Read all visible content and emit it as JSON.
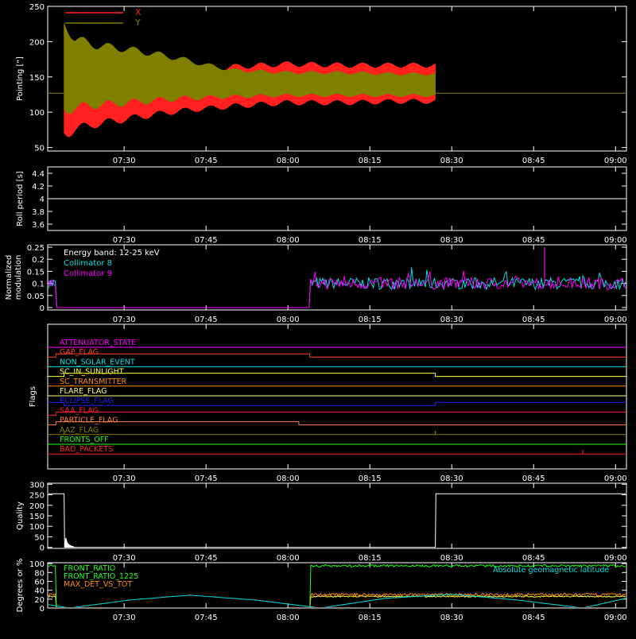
{
  "time_axis": {
    "ticks": [
      "07:30",
      "07:45",
      "08:00",
      "08:15",
      "08:30",
      "08:45",
      "09:00"
    ],
    "tick_minutes": [
      450,
      465,
      480,
      495,
      510,
      525,
      540
    ],
    "range_minutes": [
      436,
      542
    ]
  },
  "colors": {
    "background": "#000000",
    "axes": "#ffffff",
    "x": "#ff2020",
    "y": "#808000",
    "cyan": "#00e0e0",
    "magenta": "#ff00ff",
    "green": "#20ff20",
    "orange": "#ff8c00",
    "yellow": "#ffff40",
    "blue": "#2020ff",
    "red": "#ff2020"
  },
  "chart_data": [
    {
      "id": "pointing",
      "type": "line",
      "ylabel": "Pointing [\"]",
      "ylim": [
        45,
        250
      ],
      "yticks": [
        50,
        100,
        150,
        200,
        250
      ],
      "legend": [
        {
          "label": "X",
          "color": "#ff2020"
        },
        {
          "label": "Y",
          "color": "#808000"
        }
      ],
      "baseline": 127,
      "active_interval_minutes": [
        439,
        507
      ],
      "series": [
        {
          "name": "X",
          "x": [
            439,
            441,
            445,
            450,
            455,
            460,
            465,
            470,
            480,
            490,
            500,
            507
          ],
          "upper": [
            235,
            178,
            170,
            168,
            165,
            162,
            162,
            168,
            172,
            170,
            170,
            170
          ],
          "lower": [
            60,
            70,
            78,
            85,
            92,
            98,
            102,
            105,
            110,
            110,
            112,
            112
          ]
        },
        {
          "name": "Y",
          "x": [
            439,
            441,
            445,
            450,
            455,
            460,
            465,
            470,
            480,
            490,
            500,
            507
          ],
          "upper": [
            235,
            210,
            200,
            195,
            188,
            180,
            170,
            162,
            158,
            158,
            156,
            156
          ],
          "lower": [
            95,
            100,
            105,
            108,
            112,
            116,
            118,
            120,
            122,
            122,
            122,
            122
          ]
        }
      ]
    },
    {
      "id": "roll-period",
      "type": "line",
      "ylabel": "Roll period [s]",
      "ylim": [
        3.5,
        4.5
      ],
      "yticks": [
        3.6,
        3.8,
        4.0,
        4.2,
        4.4
      ],
      "series": [
        {
          "name": "",
          "x": [
            436,
            542
          ],
          "y": [
            4.0,
            4.0
          ]
        }
      ]
    },
    {
      "id": "modulation",
      "type": "line",
      "ylabel": "Normalized modulation",
      "ylim": [
        -0.01,
        0.26
      ],
      "yticks": [
        0.0,
        0.05,
        0.1,
        0.15,
        0.2,
        0.25
      ],
      "legend": [
        {
          "label": "Energy band: 12-25 keV",
          "color": "#ffffff"
        },
        {
          "label": "Collimator 8",
          "color": "#00e0e0"
        },
        {
          "label": "Collimator 9",
          "color": "#ff00ff"
        }
      ],
      "level": 0.1,
      "zero_interval_minutes": [
        437.5,
        484
      ],
      "spike": {
        "x": 527,
        "y": 0.25
      }
    },
    {
      "id": "flags",
      "type": "line",
      "ylabel": "Flags",
      "flags": [
        {
          "label": "ATTENUATOR_STATE",
          "color": "#ff00ff",
          "steps": [
            [
              436,
              0
            ]
          ]
        },
        {
          "label": "GAP_FLAG",
          "color": "#ff4020",
          "steps": [
            [
              436,
              0
            ],
            [
              437.5,
              1
            ],
            [
              484,
              0
            ]
          ]
        },
        {
          "label": "NON_SOLAR_EVENT",
          "color": "#00e0e0",
          "steps": [
            [
              436,
              0
            ]
          ]
        },
        {
          "label": "SC_IN_SUNLIGHT",
          "color": "#ffff40",
          "steps": [
            [
              436,
              0
            ],
            [
              439,
              1
            ],
            [
              507,
              0
            ]
          ]
        },
        {
          "label": "SC_TRANSMITTER",
          "color": "#ff8c00",
          "steps": [
            [
              436,
              0
            ]
          ]
        },
        {
          "label": "FLARE_FLAG",
          "color": "#ffff80",
          "steps": [
            [
              436,
              0
            ]
          ]
        },
        {
          "label": "ECLIPSE_FLAG",
          "color": "#2020ff",
          "steps": [
            [
              436,
              1
            ],
            [
              439,
              0
            ],
            [
              507,
              1
            ]
          ]
        },
        {
          "label": "SAA_FLAG",
          "color": "#ff2020",
          "steps": [
            [
              436,
              0
            ],
            [
              437.5,
              1
            ]
          ]
        },
        {
          "label": "PARTICLE_FLAG",
          "color": "#ff8040",
          "steps": [
            [
              436,
              0
            ],
            [
              437.5,
              1
            ],
            [
              482,
              0
            ]
          ]
        },
        {
          "label": "AAZ_FLAG",
          "color": "#808000",
          "steps": [
            [
              436,
              0
            ]
          ],
          "pulses": [
            439,
            507
          ]
        },
        {
          "label": "FRONTS_OFF",
          "color": "#20ff20",
          "steps": [
            [
              436,
              0
            ]
          ]
        },
        {
          "label": "BAD_PACKETS",
          "color": "#ff2020",
          "steps": [
            [
              436,
              0
            ]
          ],
          "pulses": [
            534
          ]
        }
      ]
    },
    {
      "id": "quality",
      "type": "line",
      "ylabel": "Quality",
      "ylim": [
        -5,
        305
      ],
      "yticks": [
        0,
        50,
        100,
        150,
        200,
        250,
        300
      ],
      "series": [
        {
          "name": "",
          "x": [
            436,
            439,
            439.1,
            507,
            507.1,
            542
          ],
          "y": [
            255,
            255,
            0,
            0,
            255,
            255
          ]
        }
      ]
    },
    {
      "id": "ratios",
      "type": "line",
      "ylabel": "Degrees or %",
      "ylim": [
        0,
        102
      ],
      "yticks": [
        0,
        20,
        40,
        60,
        80,
        100
      ],
      "legend": [
        {
          "label": "FRONT_RATIO",
          "color": "#20ff20"
        },
        {
          "label": "FRONT_RATIO_1225",
          "color": "#20ff20"
        },
        {
          "label": "MAX_DET_VS_TOT",
          "color": "#ff8c00"
        },
        {
          "label": "Absolute geomagnetic latitude",
          "color": "#00e0e0"
        }
      ],
      "gap_interval_minutes": [
        437.5,
        484
      ],
      "front_ratio_level": 95,
      "max_det_level": 30,
      "latitude": {
        "x": [
          436,
          440,
          451,
          462,
          474,
          486,
          498,
          510,
          522,
          534,
          542
        ],
        "y": [
          8,
          0,
          18,
          29,
          18,
          0,
          22,
          31,
          18,
          0,
          22
        ]
      }
    }
  ]
}
